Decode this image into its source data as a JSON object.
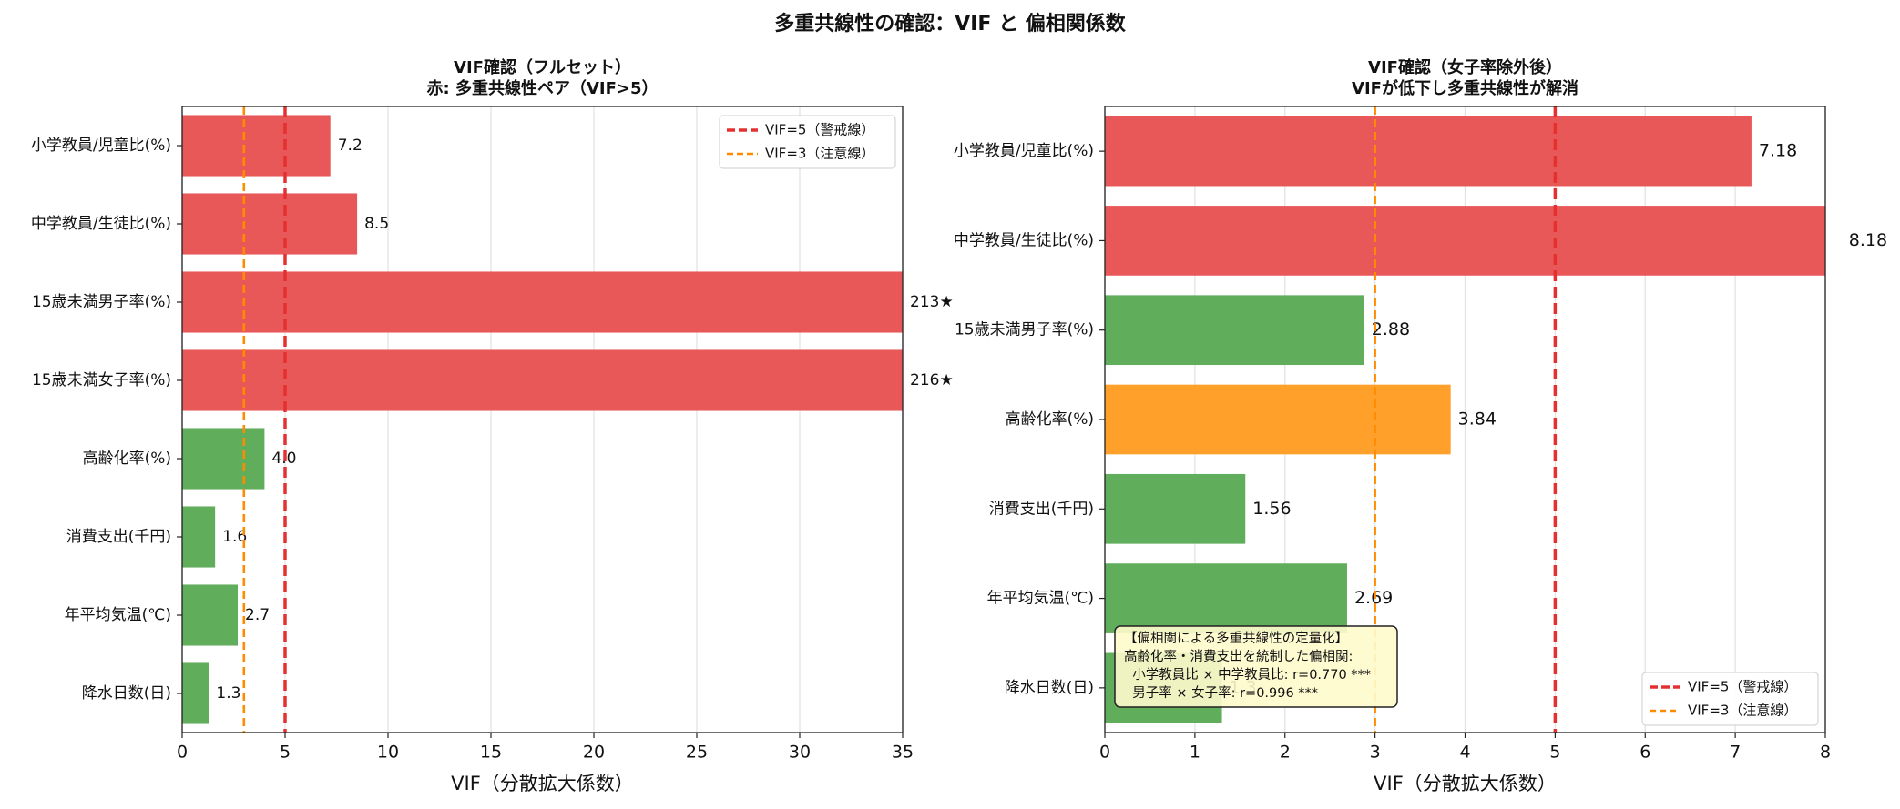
{
  "title": "多重共線性の確認：VIF と 偏相関係数",
  "chart_data": [
    {
      "type": "barh",
      "title": "VIF確認（フルセット）",
      "subtitle": "赤: 多重共線性ペア（VIF>5）",
      "xlabel": "VIF（分散拡大係数）",
      "categories": [
        "小学教員/児童比(%)",
        "中学教員/生徒比(%)",
        "15歳未満男子率(%)",
        "15歳未満女子率(%)",
        "高齢化率(%)",
        "消費支出(千円)",
        "年平均気温(℃)",
        "降水日数(日)"
      ],
      "values": [
        7.2,
        8.5,
        213,
        216,
        4.0,
        1.6,
        2.7,
        1.3
      ],
      "value_labels": [
        "7.2",
        "8.5",
        "213★",
        "216★",
        "4.0",
        "1.6",
        "2.7",
        "1.3"
      ],
      "colors": [
        "#e85858",
        "#e85858",
        "#e85858",
        "#e85858",
        "#60ad5c",
        "#60ad5c",
        "#60ad5c",
        "#60ad5c"
      ],
      "xlim": [
        0,
        35
      ],
      "xticks": [
        0,
        5,
        10,
        15,
        20,
        25,
        30,
        35
      ],
      "grid": true,
      "reference_lines": [
        {
          "value": 5,
          "label": "VIF=5（警戒線）",
          "color": "#e53030"
        },
        {
          "value": 3,
          "label": "VIF=3（注意線）",
          "color": "#ff8c00"
        }
      ],
      "legend": "upper right"
    },
    {
      "type": "barh",
      "title": "VIF確認（女子率除外後）",
      "subtitle": "VIFが低下し多重共線性が解消",
      "xlabel": "VIF（分散拡大係数）",
      "categories": [
        "小学教員/児童比(%)",
        "中学教員/生徒比(%)",
        "15歳未満男子率(%)",
        "高齢化率(%)",
        "消費支出(千円)",
        "年平均気温(℃)",
        "降水日数(日)"
      ],
      "values": [
        7.18,
        8.18,
        2.88,
        3.84,
        1.56,
        2.69,
        1.3
      ],
      "colors": [
        "#e85858",
        "#e85858",
        "#60ad5c",
        "#ffa02a",
        "#60ad5c",
        "#60ad5c",
        "#60ad5c"
      ],
      "xlim": [
        0,
        8
      ],
      "xticks": [
        0,
        1,
        2,
        3,
        4,
        5,
        6,
        7,
        8
      ],
      "grid": true,
      "reference_lines": [
        {
          "value": 5,
          "label": "VIF=5（警戒線）",
          "color": "#e53030"
        },
        {
          "value": 3,
          "label": "VIF=3（注意線）",
          "color": "#ff8c00"
        }
      ],
      "legend": "lower right",
      "annotation": [
        "【偏相関による多重共線性の定量化】",
        "高齢化率・消費支出を統制した偏相関:",
        "  小学教員比 × 中学教員比: r=0.770 ***",
        "  男子率 × 女子率: r=0.996 ***"
      ]
    }
  ]
}
